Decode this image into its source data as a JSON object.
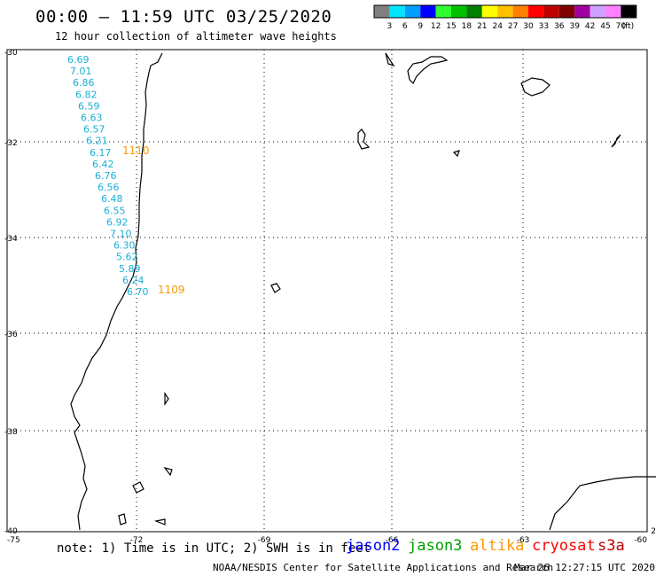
{
  "header": {
    "title": "00:00 – 11:59 UTC 03/25/2020",
    "subtitle": "12 hour collection of altimeter wave heights"
  },
  "legend": {
    "colors": [
      "#808080",
      "#00e5ff",
      "#00a0ff",
      "#0000ff",
      "#30ff30",
      "#00c000",
      "#008000",
      "#ffff00",
      "#ffc000",
      "#ff8000",
      "#ff0000",
      "#c00000",
      "#800000",
      "#a000a0",
      "#d0a0ff",
      "#ff80ff",
      "#000000"
    ],
    "labels": [
      "3",
      "6",
      "9",
      "12",
      "15",
      "18",
      "21",
      "24",
      "27",
      "30",
      "33",
      "36",
      "39",
      "42",
      "45",
      "70"
    ],
    "unit": "(ft)"
  },
  "map": {
    "lat_labels": [
      "-30",
      "-32",
      "-34",
      "-36",
      "-38",
      "-40"
    ],
    "lon_labels": [
      "-75",
      "-72",
      "-69",
      "-66",
      "-63",
      "-60"
    ],
    "corner_right_top": "2",
    "wave_heights": {
      "color": "#1ab0d6",
      "values": [
        "6.69",
        "7.01",
        "6.86",
        "6.82",
        "6.59",
        "6.63",
        "6.57",
        "6.21",
        "6.17",
        "6.42",
        "6.76",
        "6.56",
        "6.48",
        "6.55",
        "6.92",
        "7.10",
        "6.30",
        "5.62",
        "5.89",
        "6.24",
        "6.70"
      ]
    },
    "pass_times": [
      {
        "label": "1110",
        "color": "#ff9900"
      },
      {
        "label": "1109",
        "color": "#ff9900"
      }
    ]
  },
  "footer": {
    "note": "note: 1) Time is in UTC; 2) SWH is in feet",
    "satellites": [
      {
        "name": "jason2",
        "color": "#0000ff"
      },
      {
        "name": "jason3",
        "color": "#00a000"
      },
      {
        "name": "altika",
        "color": "#ff9900"
      },
      {
        "name": "cryosat",
        "color": "#ff0000"
      },
      {
        "name": "s3a",
        "color": "#c00000"
      }
    ],
    "credit": "NOAA/NESDIS Center for Satellite Applications and Research",
    "timestamp": "Mar 26 12:27:15 UTC 2020"
  }
}
